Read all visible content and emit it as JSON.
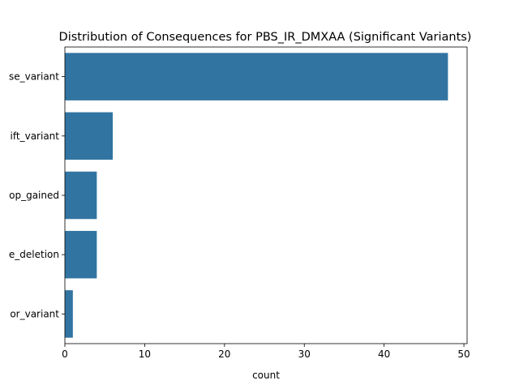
{
  "chart_data": {
    "type": "bar",
    "orientation": "horizontal",
    "title": "Distribution of Consequences for PBS_IR_DMXAA (Significant Variants)",
    "xlabel": "count",
    "ylabel": "",
    "categories": [
      "se_variant",
      "ift_variant",
      "op_gained",
      "e_deletion",
      "or_variant"
    ],
    "values": [
      48,
      6,
      4,
      4,
      1
    ],
    "xlim": [
      0,
      50.4
    ],
    "x_ticks": [
      "0",
      "10",
      "20",
      "30",
      "40",
      "50"
    ],
    "grid": false,
    "legend": "none",
    "bar_color": "#3274a1"
  }
}
